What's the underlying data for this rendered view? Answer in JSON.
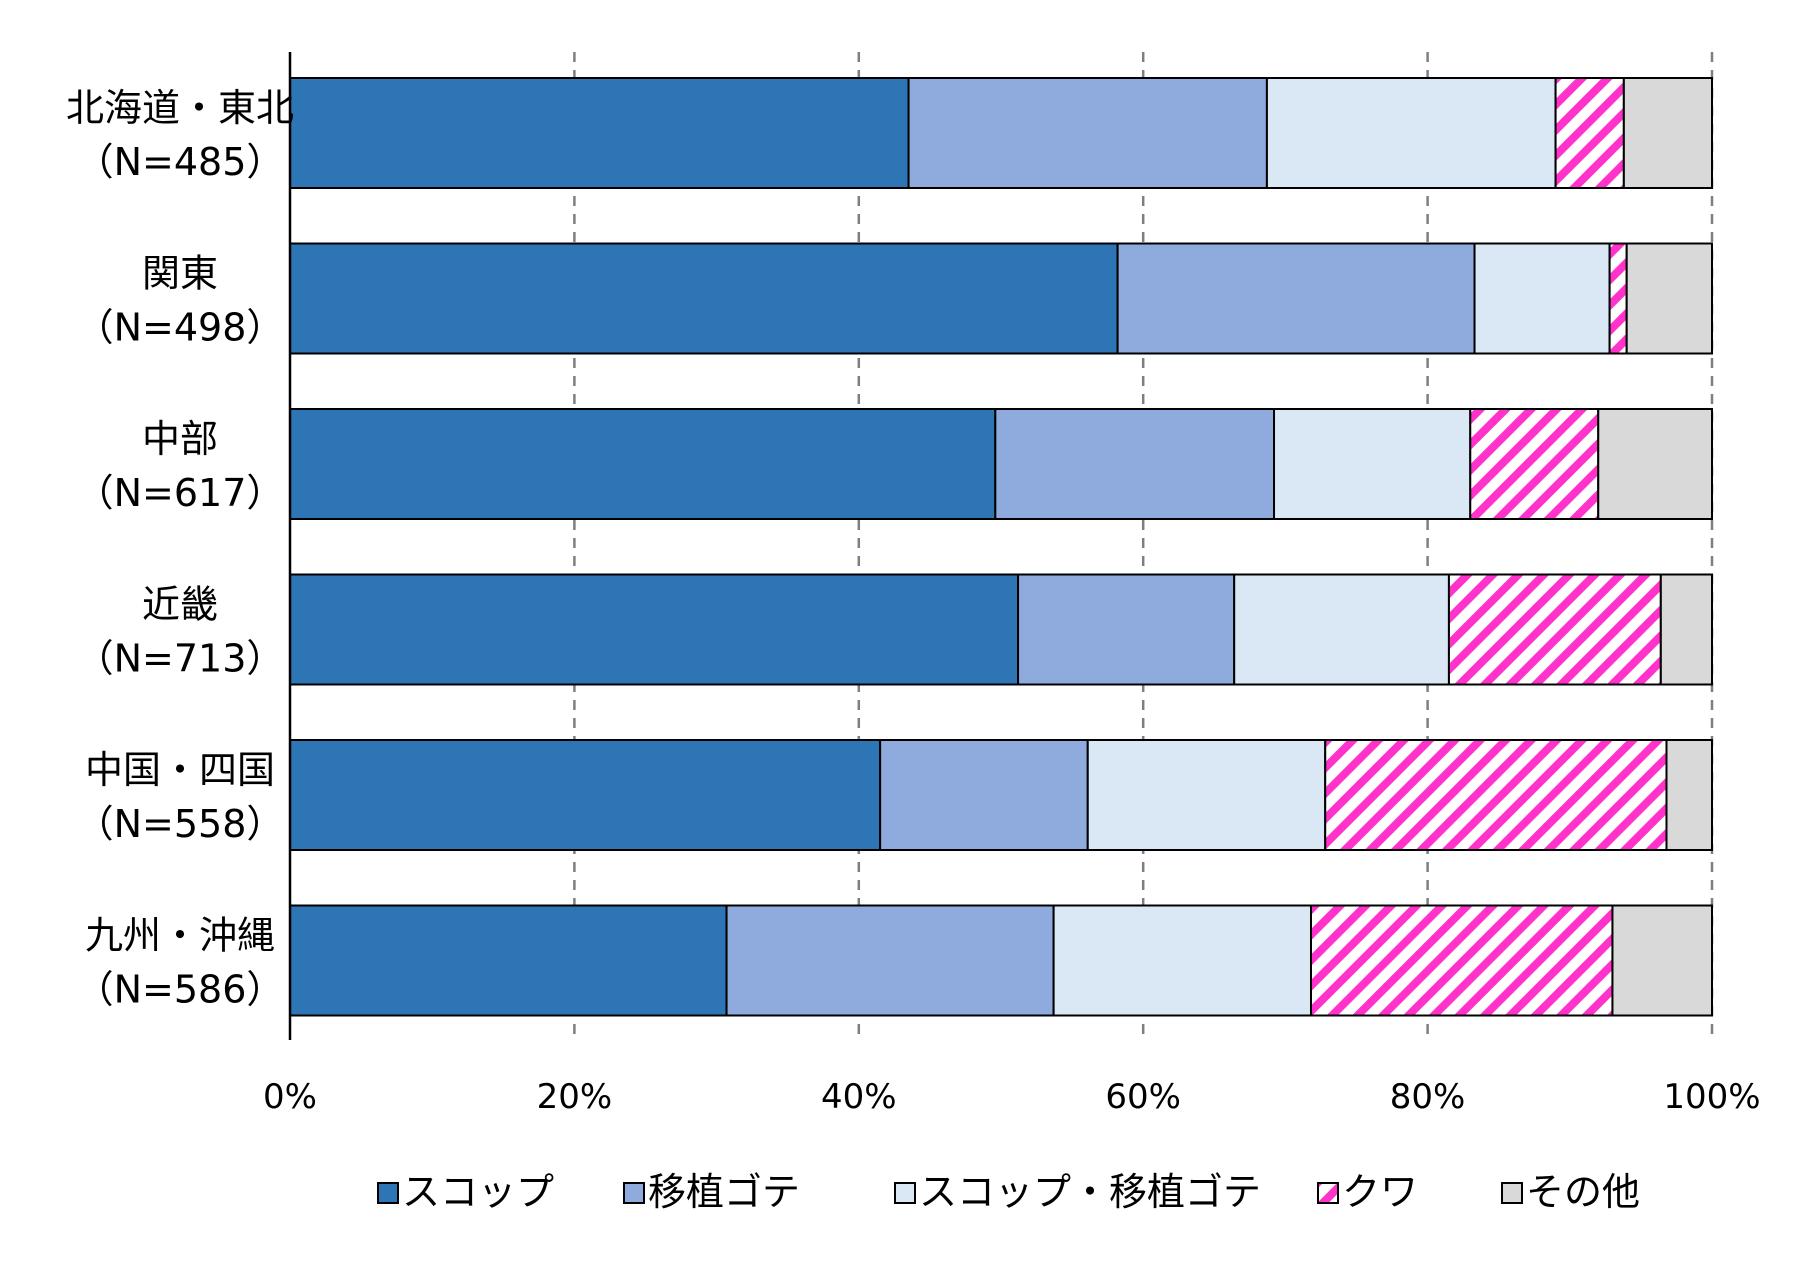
{
  "chart_data": {
    "type": "bar",
    "orientation": "horizontal",
    "stacked": "percent",
    "categories": [
      {
        "name": "北海道・東北",
        "n": "（N=485）"
      },
      {
        "name": "関東",
        "n": "（N=498）"
      },
      {
        "name": "中部",
        "n": "（N=617）"
      },
      {
        "name": "近畿",
        "n": "（N=713）"
      },
      {
        "name": "中国・四国",
        "n": "（N=558）"
      },
      {
        "name": "九州・沖縄",
        "n": "（N=586）"
      }
    ],
    "series": [
      {
        "name": "スコップ",
        "color": "#2e75b6",
        "pattern": "solid",
        "values": [
          43.5,
          58.2,
          49.6,
          51.2,
          41.5,
          30.7
        ]
      },
      {
        "name": "移植ゴテ",
        "color": "#8faadc",
        "pattern": "solid",
        "values": [
          25.2,
          25.1,
          19.6,
          15.2,
          14.6,
          23.0
        ]
      },
      {
        "name": "スコップ・移植ゴテ",
        "color": "#dae8f5",
        "pattern": "solid",
        "values": [
          20.3,
          9.5,
          13.8,
          15.1,
          16.7,
          18.1
        ]
      },
      {
        "name": "クワ",
        "color": "#ff33cc",
        "pattern": "diagonal-stripes",
        "values": [
          4.8,
          1.2,
          9.0,
          14.9,
          24.0,
          21.2
        ]
      },
      {
        "name": "その他",
        "color": "#d9d9d9",
        "pattern": "solid",
        "values": [
          6.2,
          6.0,
          8.0,
          3.6,
          3.2,
          7.0
        ]
      }
    ],
    "xlim": [
      0,
      100
    ],
    "x_ticks": [
      "0%",
      "20%",
      "40%",
      "60%",
      "80%",
      "100%"
    ],
    "grid": "vertical-dashed",
    "legend_position": "bottom",
    "title": "",
    "xlabel": "",
    "ylabel": ""
  }
}
